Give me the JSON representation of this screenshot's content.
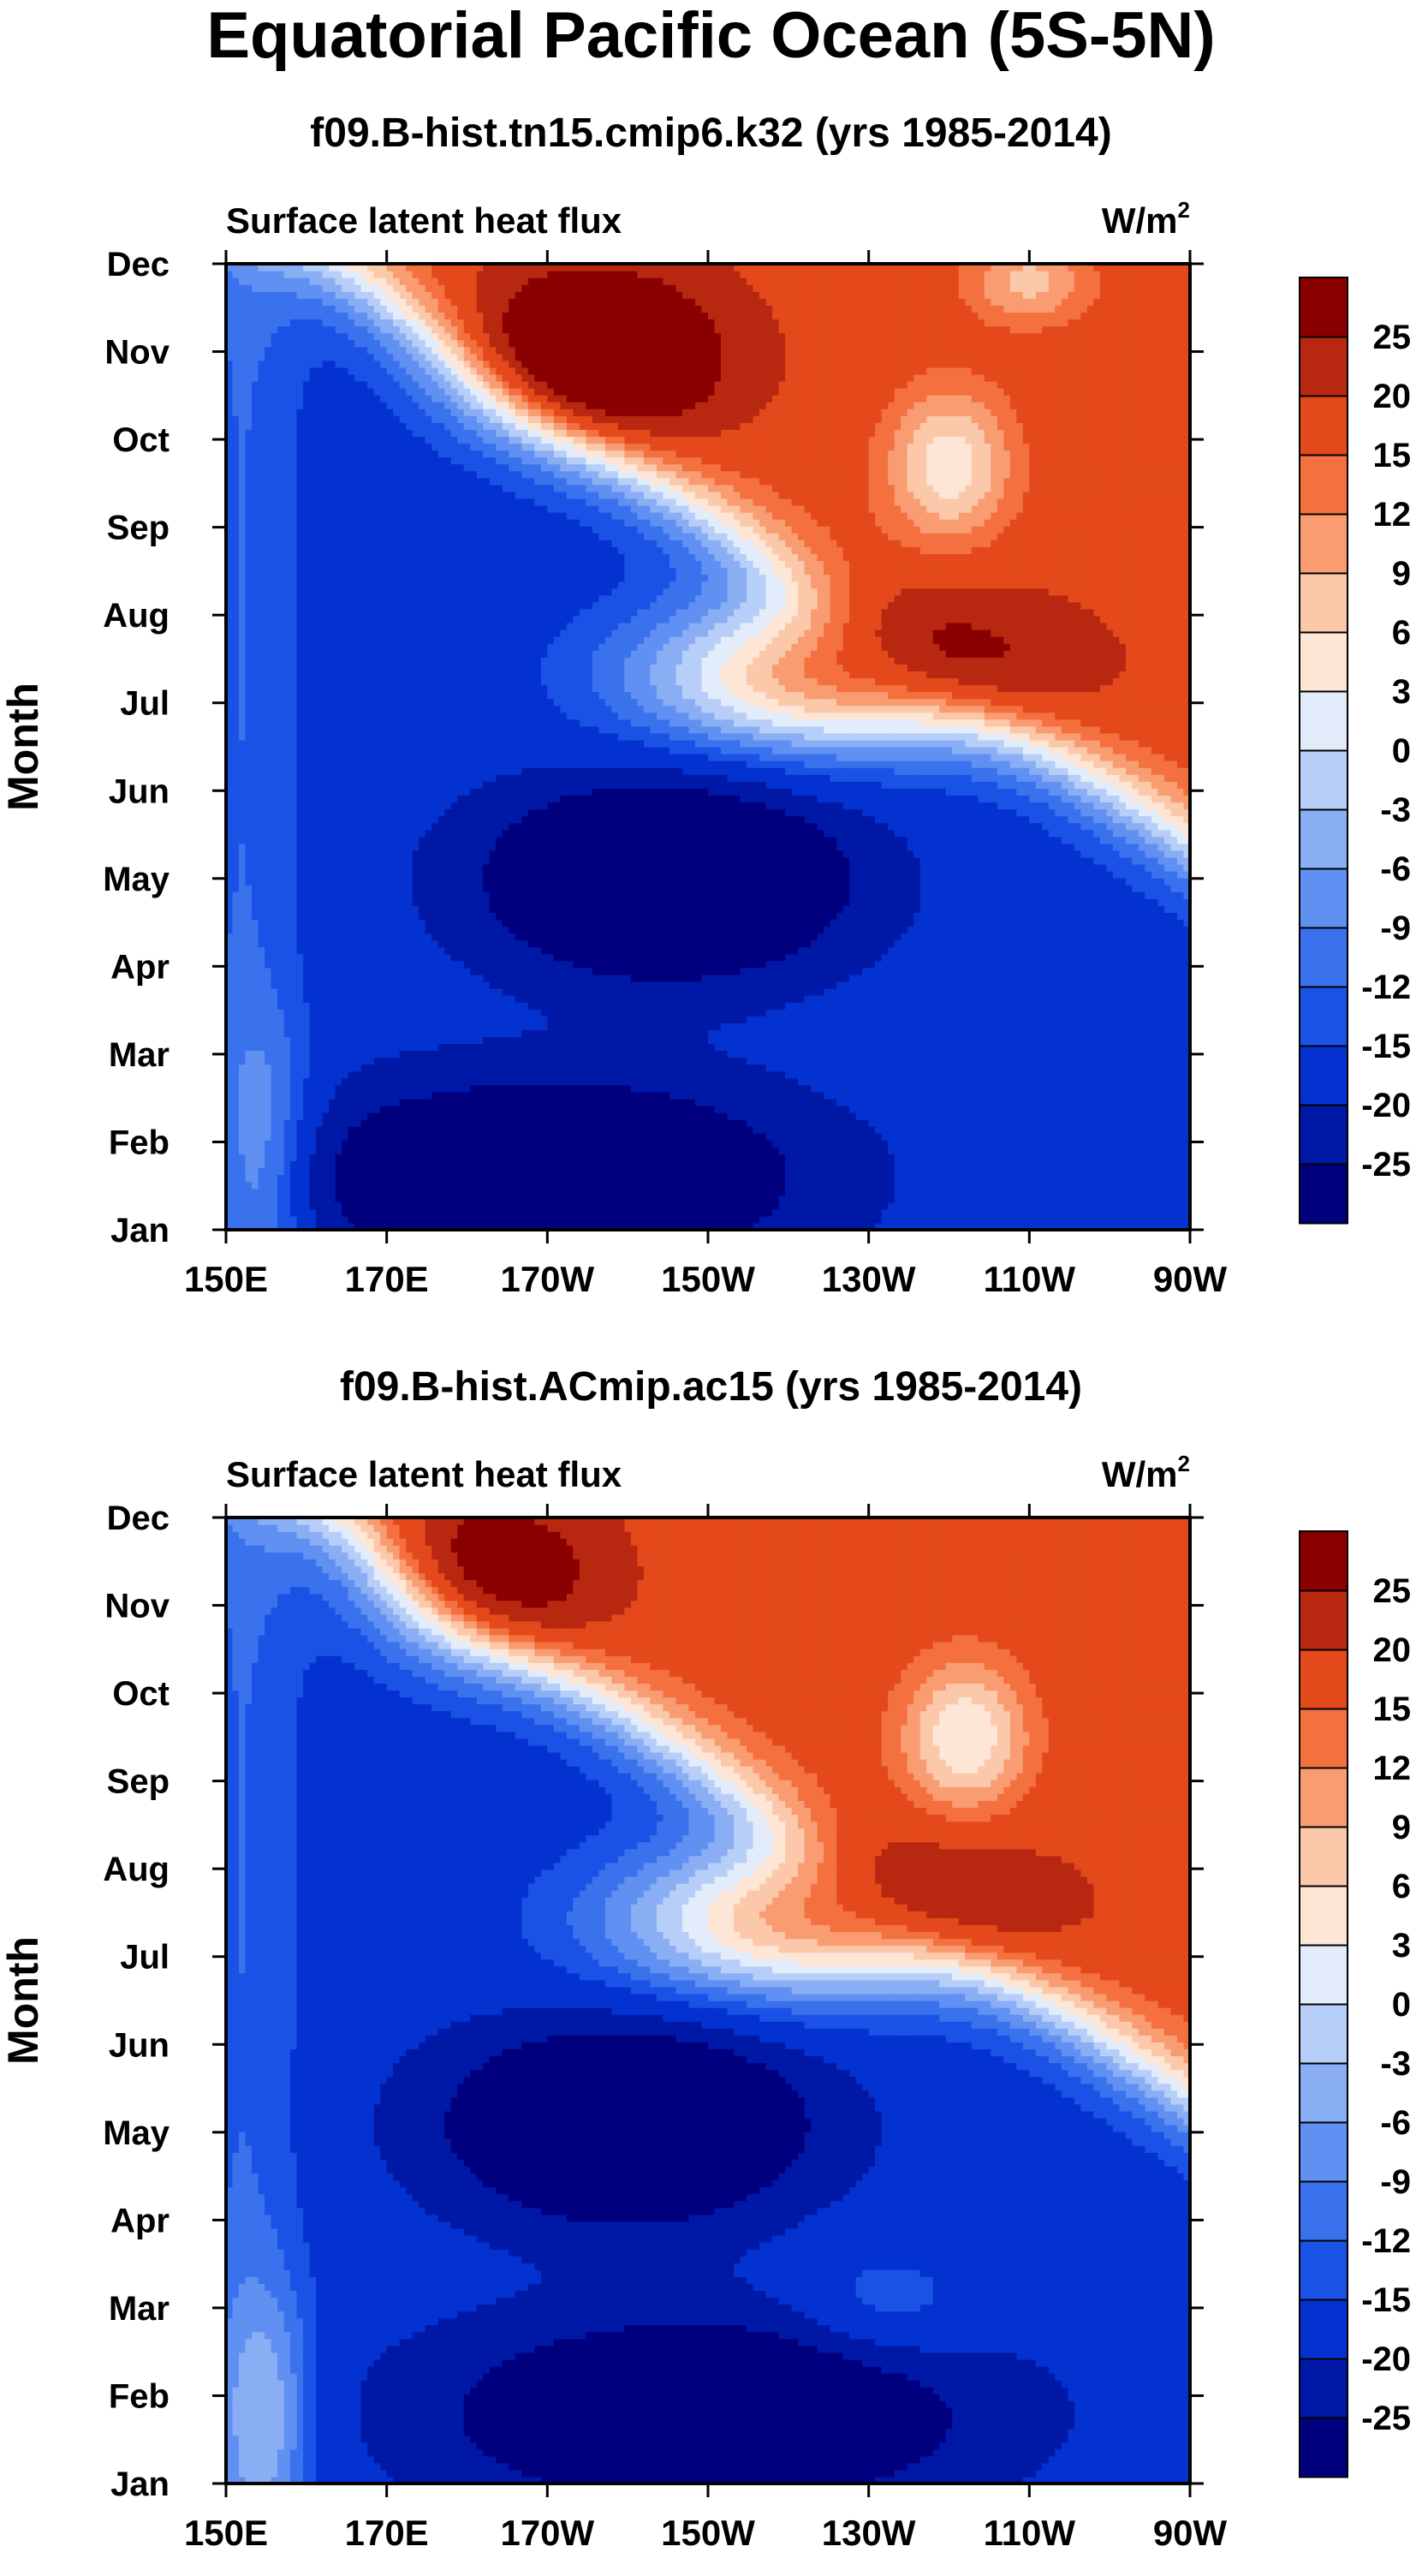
{
  "figure": {
    "title": "Equatorial Pacific Ocean (5S-5N)"
  },
  "colors": {
    "levels": [
      -25,
      -20,
      -15,
      -12,
      -9,
      -6,
      -3,
      0,
      3,
      6,
      9,
      12,
      15,
      20,
      25
    ],
    "fills": [
      "#00007f",
      "#0018a6",
      "#0432d0",
      "#1a52e6",
      "#3a72ee",
      "#6090f2",
      "#8aaef4",
      "#b6cef8",
      "#e2ecfb",
      "#fde6d6",
      "#fbc8aa",
      "#f99c72",
      "#f4703f",
      "#e4491b",
      "#b82810",
      "#8a0000"
    ]
  },
  "chart_data": [
    {
      "type": "heatmap",
      "title": "f09.B-hist.tn15.cmip6.k32 (yrs 1985-2014)",
      "left_label": "Surface latent heat flux",
      "right_label": "W/m",
      "right_label_sup": "2",
      "ylabel": "Month",
      "x_ticks": [
        "150E",
        "170E",
        "170W",
        "150W",
        "130W",
        "110W",
        "90W"
      ],
      "x_values": [
        150,
        170,
        190,
        210,
        230,
        250,
        270
      ],
      "y_ticks": [
        "Jan",
        "Feb",
        "Mar",
        "Apr",
        "May",
        "Jun",
        "Jul",
        "Aug",
        "Sep",
        "Oct",
        "Nov",
        "Dec"
      ],
      "colorbar_labels": [
        "-25",
        "-20",
        "-15",
        "-12",
        "-9",
        "-6",
        "-3",
        "0",
        "3",
        "6",
        "9",
        "12",
        "15",
        "20",
        "25"
      ],
      "xlim": [
        150,
        270
      ],
      "ylim": [
        1,
        12
      ],
      "features": [
        {
          "lon": 225,
          "mon": 7.3,
          "val": 28,
          "sx": 24,
          "sy": 0.9
        },
        {
          "lon": 195,
          "mon": 10.9,
          "val": 22,
          "sx": 16,
          "sy": 1.0
        },
        {
          "lon": 205,
          "mon": 5.0,
          "val": -26,
          "sx": 20,
          "sy": 1.0
        },
        {
          "lon": 190,
          "mon": 1.6,
          "val": -22,
          "sx": 28,
          "sy": 1.0
        },
        {
          "lon": 240,
          "mon": 9.7,
          "val": -14,
          "sx": 8,
          "sy": 0.9
        },
        {
          "lon": 250,
          "mon": 11.8,
          "val": -10,
          "sx": 8,
          "sy": 0.5
        },
        {
          "lon": 155,
          "mon": 1.8,
          "val": 8,
          "sx": 6,
          "sy": 1.5
        }
      ]
    },
    {
      "type": "heatmap",
      "title": "f09.B-hist.ACmip.ac15 (yrs 1985-2014)",
      "left_label": "Surface latent heat flux",
      "right_label": "W/m",
      "right_label_sup": "2",
      "ylabel": "Month",
      "x_ticks": [
        "150E",
        "170E",
        "170W",
        "150W",
        "130W",
        "110W",
        "90W"
      ],
      "x_values": [
        150,
        170,
        190,
        210,
        230,
        250,
        270
      ],
      "y_ticks": [
        "Jan",
        "Feb",
        "Mar",
        "Apr",
        "May",
        "Jun",
        "Jul",
        "Aug",
        "Sep",
        "Oct",
        "Nov",
        "Dec"
      ],
      "colorbar_labels": [
        "-25",
        "-20",
        "-15",
        "-12",
        "-9",
        "-6",
        "-3",
        "0",
        "3",
        "6",
        "9",
        "12",
        "15",
        "20",
        "25"
      ],
      "xlim": [
        150,
        270
      ],
      "ylim": [
        1,
        12
      ],
      "features": [
        {
          "lon": 222,
          "mon": 7.4,
          "val": 27,
          "sx": 24,
          "sy": 0.9
        },
        {
          "lon": 182,
          "mon": 11.2,
          "val": 17,
          "sx": 14,
          "sy": 1.0
        },
        {
          "lon": 200,
          "mon": 5.1,
          "val": -25,
          "sx": 20,
          "sy": 1.0
        },
        {
          "lon": 210,
          "mon": 1.8,
          "val": -20,
          "sx": 30,
          "sy": 1.0
        },
        {
          "lon": 242,
          "mon": 9.5,
          "val": -15,
          "sx": 8,
          "sy": 0.9
        },
        {
          "lon": 232,
          "mon": 3.0,
          "val": 6,
          "sx": 12,
          "sy": 0.7
        },
        {
          "lon": 155,
          "mon": 1.8,
          "val": 10,
          "sx": 6,
          "sy": 1.5
        }
      ]
    }
  ]
}
